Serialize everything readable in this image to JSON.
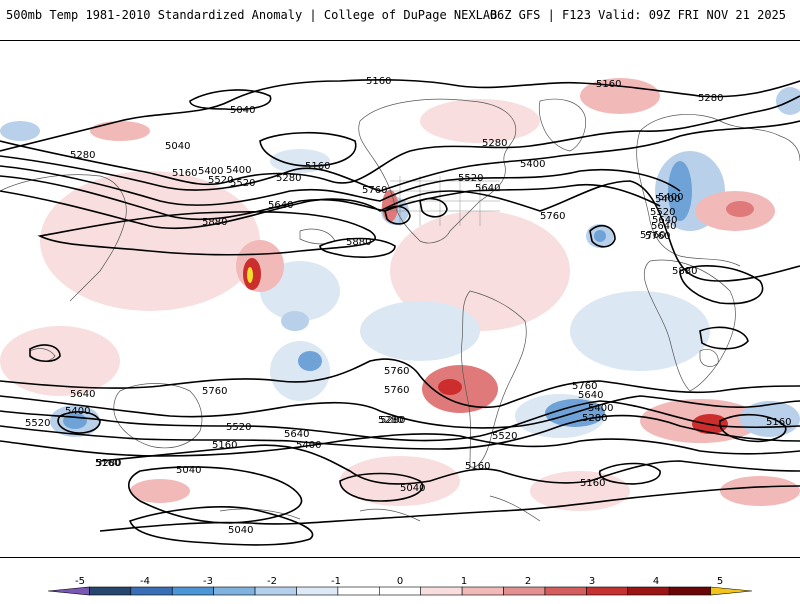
{
  "header": {
    "left_title": "500mb Temp 1981-2010 Standardized Anomaly | College of DuPage NEXLAB",
    "right_title": "06Z GFS | F123 Valid: 09Z FRI NOV 21 2025"
  },
  "colors": {
    "coast": "#555555",
    "contour": "#000000",
    "blue_light": "#dce7f4",
    "blue_mid": "#b9d0ea",
    "blue_strong": "#6fa3d8",
    "blue_deep": "#3a7cc2",
    "red_light": "#f8dede",
    "red_mid": "#f2b9b9",
    "red_strong": "#e07a7a",
    "red_deep": "#cc2d2d",
    "red_max": "#8b0a0a",
    "yellow": "#f2e02a"
  },
  "colorbar": {
    "ticks": [
      "-5",
      "-4",
      "-3",
      "-2",
      "-1",
      "0",
      "1",
      "2",
      "3",
      "4",
      "5"
    ],
    "colors": [
      "#7a57b3",
      "#27466f",
      "#3a6fb7",
      "#4a96d6",
      "#7fb2df",
      "#b5d0ec",
      "#dde9f6",
      "#ffffff",
      "#ffffff",
      "#f8dede",
      "#f2b9b9",
      "#e39090",
      "#d45d5d",
      "#c63131",
      "#9b1515",
      "#6a0606",
      "#f2c419"
    ]
  },
  "contour_labels": [
    "5160",
    "5040",
    "5040",
    "5160",
    "5160",
    "5280",
    "5280",
    "5400",
    "5520",
    "5160",
    "5280",
    "5400",
    "5520",
    "5640",
    "5760",
    "5280",
    "5400",
    "5520",
    "5640",
    "5760",
    "5880",
    "5880",
    "5760",
    "5640",
    "5400",
    "5520",
    "5400",
    "5640",
    "5760",
    "5880",
    "5760",
    "5640",
    "5400",
    "5520",
    "5160",
    "5280",
    "5040",
    "5040",
    "5160",
    "5280",
    "5400",
    "5520",
    "5640",
    "5760",
    "5760",
    "5640",
    "5520",
    "5400",
    "5280",
    "5160",
    "5160",
    "5160",
    "5040",
    "5760",
    "5280"
  ]
}
